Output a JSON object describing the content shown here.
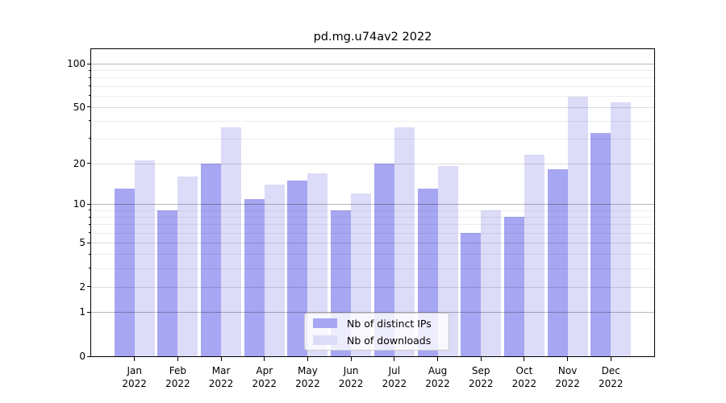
{
  "chart_data": {
    "type": "bar",
    "title": "pd.mg.u74av2 2022",
    "categories": [
      "Jan",
      "Feb",
      "Mar",
      "Apr",
      "May",
      "Jun",
      "Jul",
      "Aug",
      "Sep",
      "Oct",
      "Nov",
      "Dec"
    ],
    "x_tick_year": "2022",
    "series": [
      {
        "name": "Nb of distinct IPs",
        "color": "#a6a6f2",
        "values": [
          13,
          9,
          20,
          11,
          15,
          9,
          20,
          13,
          6,
          8,
          18,
          33
        ]
      },
      {
        "name": "Nb of downloads",
        "color": "#dcdcf8",
        "values": [
          21,
          16,
          36,
          14,
          17,
          12,
          36,
          19,
          9,
          23,
          59,
          54
        ]
      }
    ],
    "y_axis": {
      "scale": "log1p",
      "ylim": [
        0,
        126
      ],
      "ticks": [
        0,
        1,
        2,
        5,
        10,
        20,
        50,
        100
      ],
      "minor_ticks": [
        3,
        4,
        6,
        7,
        8,
        9,
        30,
        40,
        60,
        70,
        80,
        90
      ]
    },
    "legend": {
      "position": "lower-center"
    },
    "grid": true,
    "xlabel": "",
    "ylabel": ""
  },
  "colors": {
    "background": "#ffffff",
    "bar_distinct_ips": "#a6a6f2",
    "bar_downloads": "#dcdcf8",
    "axis": "#000000",
    "grid_decade": "#b8b8b8",
    "grid_sub": "#dbdbdb",
    "grid_minor": "#ededed",
    "legend_border": "#cccccc"
  }
}
